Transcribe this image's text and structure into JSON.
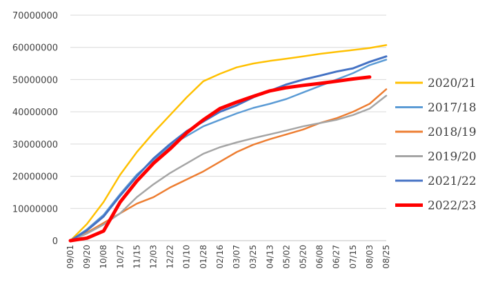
{
  "chart_data": {
    "type": "line",
    "title": "",
    "xlabel": "",
    "ylabel": "",
    "ylim": [
      0,
      70000000
    ],
    "y_ticks": [
      "0",
      "10000000",
      "20000000",
      "30000000",
      "40000000",
      "50000000",
      "60000000",
      "70000000"
    ],
    "x_ticks": [
      "09/01",
      "09/20",
      "10/08",
      "10/27",
      "11/15",
      "12/03",
      "12/22",
      "01/10",
      "01/28",
      "02/16",
      "03/07",
      "03/25",
      "04/13",
      "05/02",
      "05/20",
      "06/08",
      "06/27",
      "07/15",
      "08/03",
      "08/25"
    ],
    "grid": "horizontal",
    "legend_position": "right",
    "series": [
      {
        "name": "2020/21",
        "color": "#FFC000",
        "width": 2.5,
        "values": [
          0,
          5200000,
          12000000,
          20500000,
          27500000,
          33500000,
          39000000,
          44500000,
          49500000,
          51800000,
          53800000,
          55000000,
          55800000,
          56500000,
          57200000,
          58000000,
          58600000,
          59200000,
          59800000,
          60700000
        ]
      },
      {
        "name": "2017/18",
        "color": "#5B9BD5",
        "width": 2.5,
        "values": [
          0,
          3500000,
          8000000,
          14500000,
          20500000,
          25000000,
          29500000,
          32500000,
          35500000,
          37500000,
          39500000,
          41200000,
          42500000,
          44000000,
          46000000,
          48000000,
          50000000,
          52000000,
          54500000,
          56200000
        ]
      },
      {
        "name": "2018/19",
        "color": "#ED7D31",
        "width": 2.5,
        "values": [
          0,
          2500000,
          5500000,
          8500000,
          11500000,
          13500000,
          16500000,
          19000000,
          21500000,
          24500000,
          27500000,
          29800000,
          31500000,
          33000000,
          34500000,
          36500000,
          38000000,
          40000000,
          42500000,
          47000000
        ]
      },
      {
        "name": "2019/20",
        "color": "#A5A5A5",
        "width": 2.5,
        "values": [
          0,
          2200000,
          5000000,
          8500000,
          13500000,
          17500000,
          21000000,
          24000000,
          27000000,
          29000000,
          30500000,
          31800000,
          33000000,
          34200000,
          35500000,
          36500000,
          37500000,
          39000000,
          41000000,
          45000000
        ]
      },
      {
        "name": "2021/22",
        "color": "#4472C4",
        "width": 3,
        "values": [
          0,
          3200000,
          7500000,
          14000000,
          20000000,
          25500000,
          30000000,
          34000000,
          37000000,
          40000000,
          42000000,
          44500000,
          46500000,
          48500000,
          50000000,
          51200000,
          52500000,
          53500000,
          55500000,
          57200000
        ]
      },
      {
        "name": "2022/23",
        "color": "#FF0000",
        "width": 5,
        "values": [
          0,
          800000,
          3000000,
          12000000,
          18500000,
          24000000,
          28500000,
          33500000,
          37500000,
          41000000,
          43000000,
          44800000,
          46500000,
          47500000,
          48200000,
          48800000,
          49500000,
          50200000,
          50800000,
          null
        ]
      }
    ]
  }
}
